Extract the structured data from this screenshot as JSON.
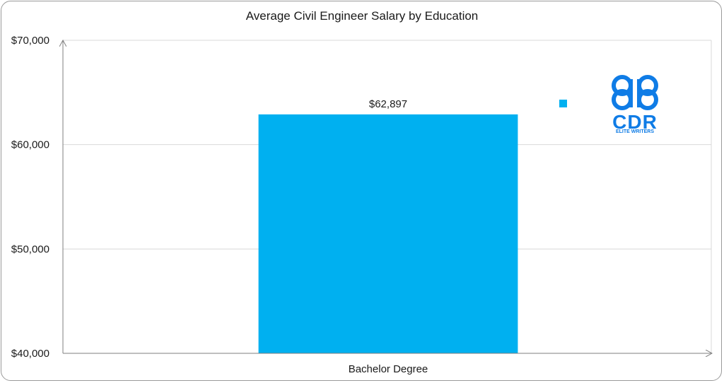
{
  "chart_data": {
    "type": "bar",
    "title": "Average Civil Engineer Salary by Education",
    "categories": [
      "Bachelor Degree"
    ],
    "values": [
      62897
    ],
    "data_labels": [
      "$62,897"
    ],
    "yticks": [
      40000,
      50000,
      60000,
      70000
    ],
    "ytick_labels": [
      "$40,000",
      "$50,000",
      "$60,000",
      "$70,000"
    ],
    "ylim": [
      40000,
      70000
    ],
    "xlabel": "",
    "ylabel": "",
    "grid": true,
    "legend": "right",
    "colors": {
      "bar": "#00B0F0",
      "grid": "#d9d9d9",
      "axis": "#7f7f7f"
    }
  },
  "logo": {
    "wordmark": "CDR",
    "tagline": "ELITE WRITERS",
    "color": "#0f7ce6"
  }
}
